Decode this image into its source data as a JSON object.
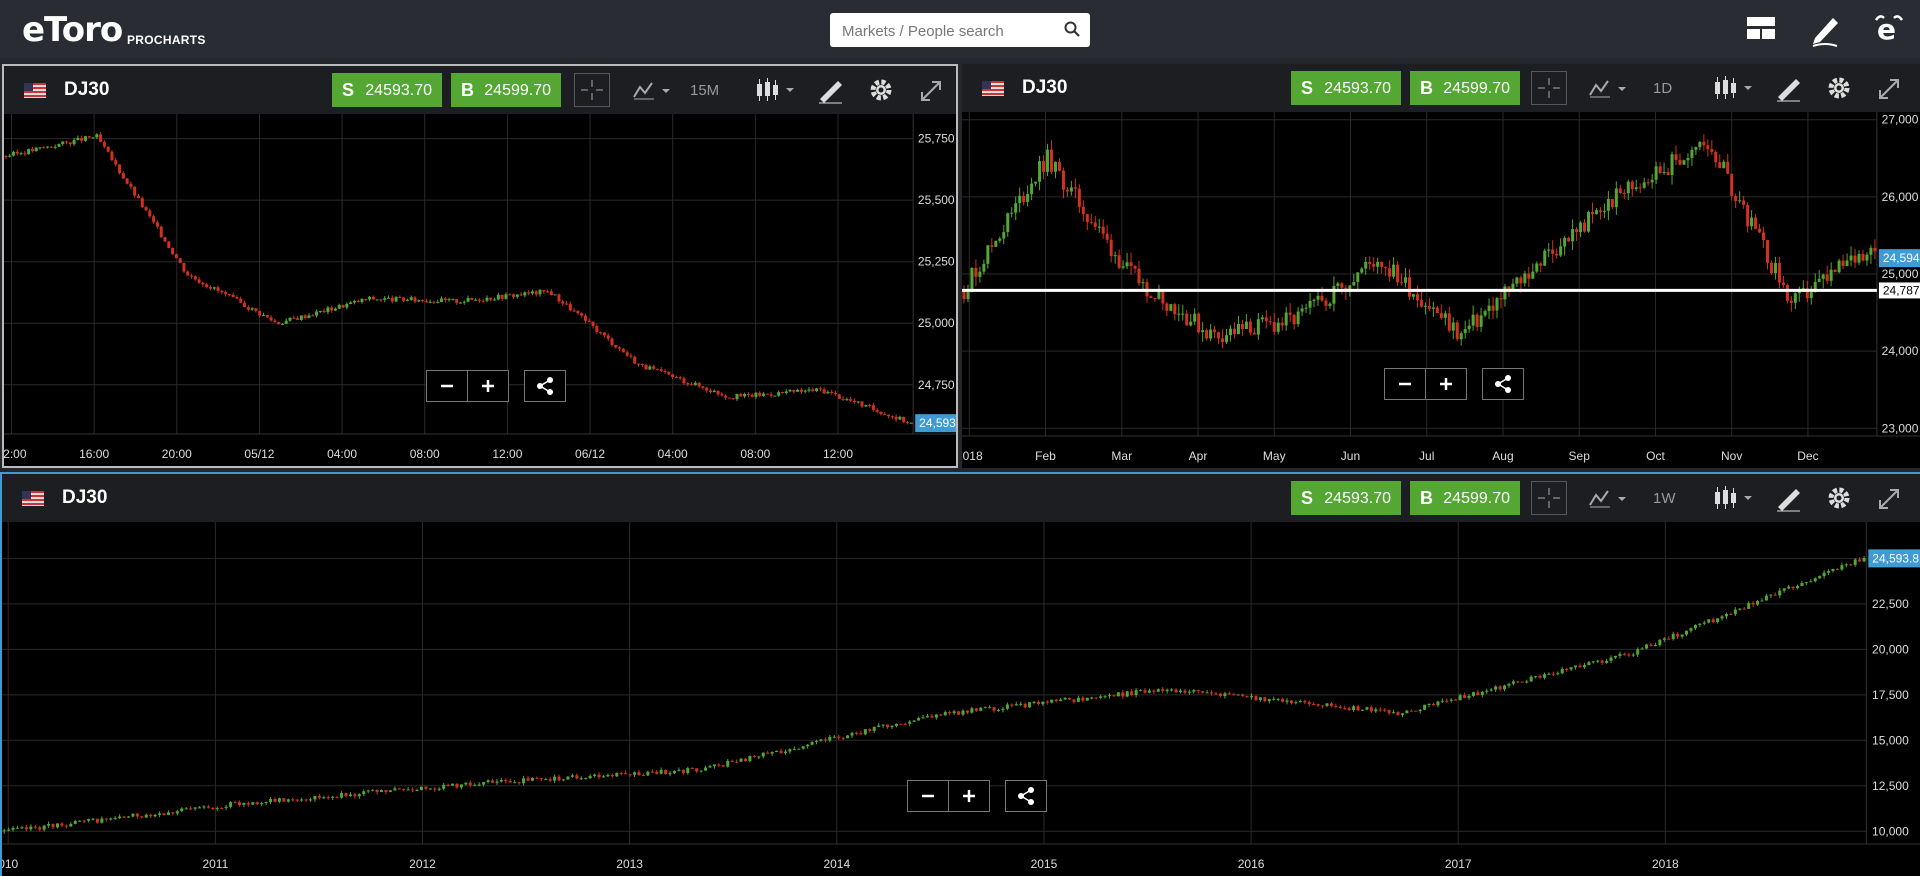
{
  "app": {
    "logo": "eToro",
    "product": "PROCHARTS"
  },
  "search": {
    "placeholder": "Markets / People search"
  },
  "icons": {
    "search": "search-icon",
    "layout": "layout-icon",
    "draw": "pencil-icon",
    "profile": "etoro-e-icon"
  },
  "colors": {
    "up": "#53a732",
    "down": "#d0321f",
    "grid": "#2a2a2a",
    "price_tag": "#3e9bd4",
    "sell_buy": "#53a732"
  },
  "panels": [
    {
      "symbol": "DJ30",
      "sell_label": "S",
      "sell_value": "24593.70",
      "buy_label": "B",
      "buy_value": "24599.70",
      "timeframe": "15M",
      "price_tag": "24,593.6",
      "x_ticks": [
        "12:00",
        "16:00",
        "20:00",
        "05/12",
        "04:00",
        "08:00",
        "12:00",
        "06/12",
        "04:00",
        "08:00",
        "12:00"
      ],
      "y_ticks": [
        "25,750",
        "25,500",
        "25,250",
        "25,000",
        "24,750"
      ]
    },
    {
      "symbol": "DJ30",
      "sell_label": "S",
      "sell_value": "24593.70",
      "buy_label": "B",
      "buy_value": "24599.70",
      "timeframe": "1D",
      "price_tag": "24,594.7",
      "line_tag": "24,787",
      "x_ticks": [
        "2018",
        "Feb",
        "Mar",
        "Apr",
        "May",
        "Jun",
        "Jul",
        "Aug",
        "Sep",
        "Oct",
        "Nov",
        "Dec"
      ],
      "y_ticks": [
        "27,000",
        "26,000",
        "25,000",
        "24,000",
        "23,000"
      ]
    },
    {
      "symbol": "DJ30",
      "sell_label": "S",
      "sell_value": "24593.70",
      "buy_label": "B",
      "buy_value": "24599.70",
      "timeframe": "1W",
      "price_tag": "24,593.8",
      "x_ticks": [
        "010",
        "2011",
        "2012",
        "2013",
        "2014",
        "2015",
        "2016",
        "2017",
        "2018"
      ],
      "y_ticks": [
        "25,000",
        "22,500",
        "20,000",
        "17,500",
        "15,000",
        "12,500",
        "10,000"
      ]
    }
  ],
  "chart_data": [
    {
      "type": "candlestick",
      "symbol": "DJ30",
      "timeframe": "15M",
      "x": [
        "12:00",
        "16:00",
        "20:00",
        "05/12",
        "04:00",
        "08:00",
        "12:00",
        "06/12",
        "04:00",
        "08:00",
        "12:00"
      ],
      "close": [
        25680,
        25760,
        25200,
        25000,
        25100,
        25090,
        25130,
        24830,
        24700,
        24730,
        24594
      ],
      "ylim": [
        24550,
        25850
      ]
    },
    {
      "type": "candlestick",
      "symbol": "DJ30",
      "timeframe": "1D",
      "x": [
        "2018",
        "Feb",
        "Mar",
        "Apr",
        "May",
        "Jun",
        "Jul",
        "Aug",
        "Sep",
        "Oct",
        "Nov",
        "Dec"
      ],
      "close": [
        24800,
        26500,
        25000,
        24200,
        24400,
        25200,
        24200,
        25200,
        26100,
        26700,
        24600,
        25400
      ],
      "horizontal_line": 24787,
      "ylim": [
        22900,
        27100
      ]
    },
    {
      "type": "candlestick",
      "symbol": "DJ30",
      "timeframe": "1W",
      "x": [
        "2010",
        "2011",
        "2012",
        "2013",
        "2014",
        "2015",
        "2016",
        "2017",
        "2018"
      ],
      "close": [
        10000,
        11500,
        12600,
        13400,
        16400,
        17800,
        16500,
        19800,
        25000
      ],
      "ylim": [
        9300,
        27000
      ]
    }
  ]
}
